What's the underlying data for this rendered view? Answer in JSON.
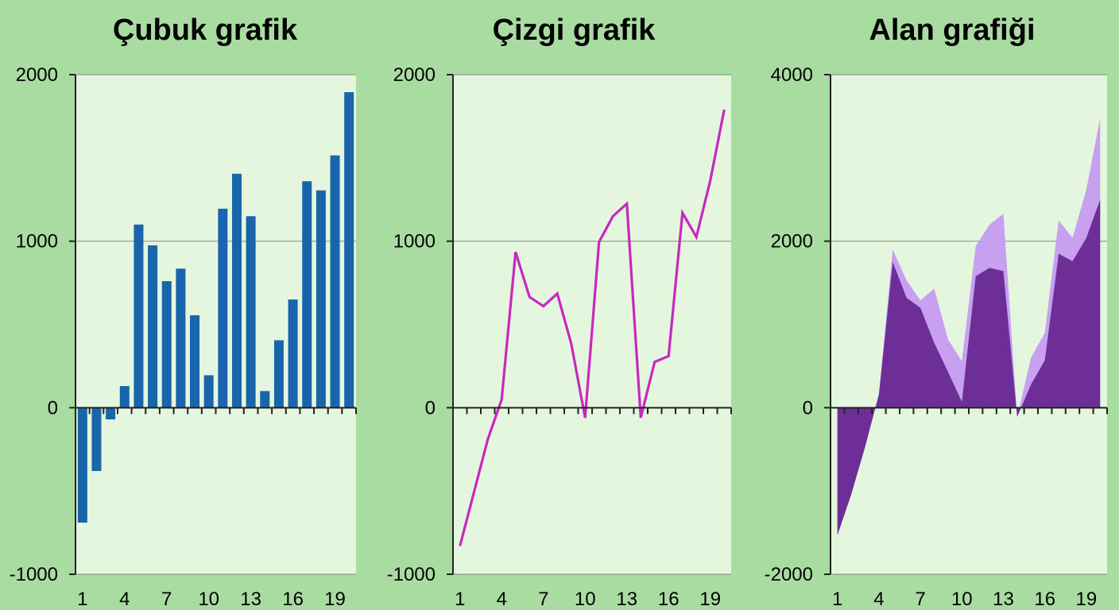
{
  "chart_data": [
    {
      "type": "bar",
      "title": "Çubuk grafik",
      "x": [
        1,
        2,
        3,
        4,
        5,
        6,
        7,
        8,
        9,
        10,
        11,
        12,
        13,
        14,
        15,
        16,
        17,
        18,
        19,
        20
      ],
      "values": [
        -690,
        -380,
        -70,
        130,
        1100,
        975,
        760,
        835,
        555,
        195,
        1195,
        1405,
        1150,
        100,
        405,
        650,
        1360,
        1305,
        1515,
        1895
      ],
      "ylim": [
        -1000,
        2000
      ],
      "yticks": [
        -1000,
        0,
        1000,
        2000
      ],
      "xticks": [
        1,
        4,
        7,
        10,
        13,
        16,
        19
      ],
      "grid": true,
      "color": "#1865ac"
    },
    {
      "type": "line",
      "title": "Çizgi grafik",
      "x": [
        1,
        2,
        3,
        4,
        5,
        6,
        7,
        8,
        9,
        10,
        11,
        12,
        13,
        14,
        15,
        16,
        17,
        18,
        19,
        20
      ],
      "values": [
        -830,
        -510,
        -190,
        50,
        935,
        665,
        610,
        685,
        385,
        -60,
        995,
        1150,
        1225,
        -60,
        275,
        310,
        1170,
        1025,
        1365,
        1790
      ],
      "ylim": [
        -1000,
        2000
      ],
      "yticks": [
        -1000,
        0,
        1000,
        2000
      ],
      "xticks": [
        1,
        4,
        7,
        10,
        13,
        16,
        19
      ],
      "grid": true,
      "color": "#c828c0"
    },
    {
      "type": "area",
      "title": "Alan grafiği",
      "x": [
        1,
        2,
        3,
        4,
        5,
        6,
        7,
        8,
        9,
        10,
        11,
        12,
        13,
        14,
        15,
        16,
        17,
        18,
        19,
        20
      ],
      "series": [
        {
          "values": [
            -1530,
            -1040,
            -470,
            160,
            1900,
            1530,
            1290,
            1430,
            820,
            560,
            1940,
            2200,
            2330,
            -110,
            600,
            900,
            2250,
            2040,
            2620,
            3480
          ],
          "color": "#c8a0f0"
        },
        {
          "values": [
            -1530,
            -1040,
            -470,
            160,
            1750,
            1320,
            1200,
            780,
            430,
            70,
            1580,
            1680,
            1640,
            -110,
            280,
            570,
            1850,
            1760,
            2040,
            2500
          ],
          "color": "#6e2e98"
        }
      ],
      "ylim": [
        -2000,
        4000
      ],
      "yticks": [
        -2000,
        0,
        2000,
        4000
      ],
      "xticks": [
        1,
        4,
        7,
        10,
        13,
        16,
        19
      ],
      "grid": true
    }
  ]
}
